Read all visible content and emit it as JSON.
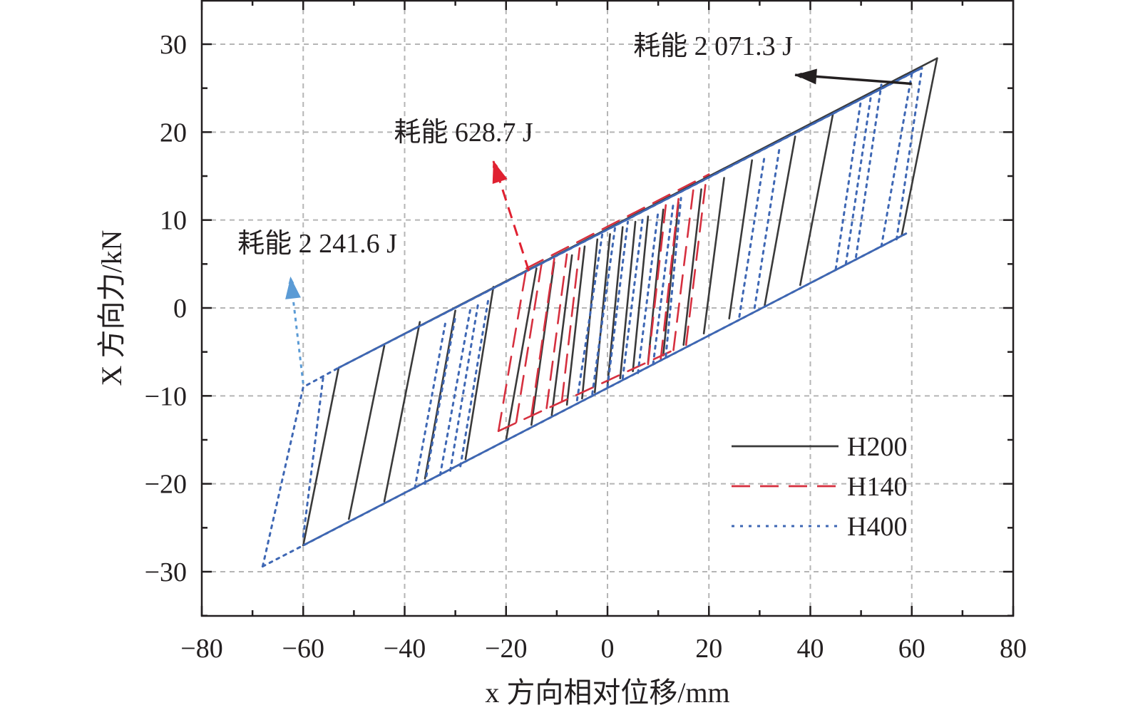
{
  "chart_data": {
    "type": "line",
    "title": "",
    "xlabel": "x 方向相对位移/mm",
    "ylabel": "X 方向力/kN",
    "xlim": [
      -80,
      80
    ],
    "ylim": [
      -35,
      35
    ],
    "xticks": [
      -80,
      -60,
      -40,
      -20,
      0,
      20,
      40,
      60,
      80
    ],
    "yticks": [
      -30,
      -20,
      -10,
      0,
      10,
      20,
      30
    ],
    "x_tick_labels": [
      "−80",
      "−60",
      "−40",
      "−20",
      "0",
      "20",
      "40",
      "60",
      "80"
    ],
    "y_tick_labels": [
      "−30",
      "−20",
      "−10",
      "0",
      "10",
      "20",
      "30"
    ],
    "grid": true,
    "legend_position": "bottom-right",
    "series": [
      {
        "name": "H200",
        "color": "#3a3a3a",
        "style": "solid",
        "envelope": {
          "upper": [
            [
              -53,
              -6.8
            ],
            [
              65,
              28.4
            ]
          ],
          "lower": [
            [
              -60,
              -27
            ],
            [
              58,
              8.2
            ]
          ],
          "tips": [
            [
              65,
              28.4
            ],
            [
              58,
              8.2
            ],
            [
              -53,
              -6.8
            ],
            [
              -60,
              -27
            ]
          ]
        },
        "unloading_paths": [
          [
            [
              -60,
              -27
            ],
            [
              -53,
              -6.8
            ]
          ],
          [
            [
              -51,
              -24
            ],
            [
              -44,
              -4.3
            ]
          ],
          [
            [
              -44,
              -22
            ],
            [
              -37,
              -1.6
            ]
          ],
          [
            [
              -36,
              -19.4
            ],
            [
              -30,
              -0.3
            ]
          ],
          [
            [
              -28,
              -17.2
            ],
            [
              -22.5,
              2.4
            ]
          ],
          [
            [
              -20,
              -15
            ],
            [
              -14,
              4.5
            ]
          ],
          [
            [
              -15,
              -13.3
            ],
            [
              -10.5,
              5.2
            ]
          ],
          [
            [
              -11,
              -12.2
            ],
            [
              -7,
              6
            ]
          ],
          [
            [
              -8,
              -11
            ],
            [
              -4.5,
              7
            ]
          ],
          [
            [
              -5,
              -10.3
            ],
            [
              -2,
              7.8
            ]
          ],
          [
            [
              -2.5,
              -9.6
            ],
            [
              0.5,
              8.4
            ]
          ],
          [
            [
              0,
              -8.8
            ],
            [
              3,
              9.2
            ]
          ],
          [
            [
              2.5,
              -8
            ],
            [
              5.5,
              9.8
            ]
          ],
          [
            [
              5,
              -7.2
            ],
            [
              8,
              10.4
            ]
          ],
          [
            [
              8,
              -6.2
            ],
            [
              11,
              11.2
            ]
          ],
          [
            [
              11,
              -5.4
            ],
            [
              14,
              12
            ]
          ],
          [
            [
              15,
              -4.2
            ],
            [
              18.5,
              13.5
            ]
          ],
          [
            [
              19,
              -2.9
            ],
            [
              23,
              14.8
            ]
          ],
          [
            [
              24,
              -1.2
            ],
            [
              28.5,
              16.8
            ]
          ],
          [
            [
              31,
              0.3
            ],
            [
              37,
              19.5
            ]
          ],
          [
            [
              38,
              2.6
            ],
            [
              44.5,
              22.2
            ]
          ],
          [
            [
              58,
              8.2
            ],
            [
              65,
              28.4
            ]
          ]
        ]
      },
      {
        "name": "H140",
        "color": "#d6303f",
        "style": "dashed",
        "envelope": {
          "upper": [
            [
              -16,
              4.5
            ],
            [
              20,
              15.2
            ]
          ],
          "lower": [
            [
              -21.5,
              -14
            ],
            [
              13,
              -4.8
            ]
          ],
          "tips": [
            [
              20,
              15.2
            ],
            [
              13,
              -4.8
            ],
            [
              -16,
              4.5
            ],
            [
              -21.5,
              -14
            ]
          ]
        },
        "unloading_paths": [
          [
            [
              -21.5,
              -14
            ],
            [
              -16,
              4.5
            ]
          ],
          [
            [
              -18,
              -13
            ],
            [
              -13,
              5
            ]
          ],
          [
            [
              -15,
              -12.2
            ],
            [
              -10.5,
              5.6
            ]
          ],
          [
            [
              -12,
              -11.4
            ],
            [
              -8,
              6.1
            ]
          ],
          [
            [
              -9,
              -10.6
            ],
            [
              -5.5,
              6.8
            ]
          ],
          [
            [
              8,
              -6.4
            ],
            [
              11.5,
              11.7
            ]
          ],
          [
            [
              10.5,
              -5.8
            ],
            [
              14,
              12.4
            ]
          ],
          [
            [
              13,
              -4.8
            ],
            [
              17,
              13.8
            ]
          ],
          [
            [
              15.5,
              -4.2
            ],
            [
              19.5,
              14.9
            ]
          ]
        ]
      },
      {
        "name": "H400",
        "color": "#3e67b4",
        "style": "dotted",
        "envelope": {
          "upper": [
            [
              -53,
              -6.8
            ],
            [
              62,
              27.3
            ]
          ],
          "lower": [
            [
              -68,
              -29.4
            ],
            [
              59,
              8.5
            ]
          ],
          "tips": [
            [
              62,
              27.3
            ],
            [
              59,
              8.5
            ],
            [
              -53,
              -6.8
            ],
            [
              -68,
              -29.4
            ]
          ]
        },
        "unloading_paths": [
          [
            [
              -68,
              -29.4
            ],
            [
              -60,
              -9
            ],
            [
              -53,
              -6.8
            ]
          ],
          [
            [
              -60,
              -26
            ],
            [
              -56,
              -7.6
            ]
          ],
          [
            [
              -38,
              -20.5
            ],
            [
              -32,
              -1.8
            ]
          ],
          [
            [
              -36,
              -20
            ],
            [
              -30,
              -1
            ]
          ],
          [
            [
              -33,
              -19
            ],
            [
              -27,
              0
            ]
          ],
          [
            [
              -31,
              -18.5
            ],
            [
              -25.5,
              0.5
            ]
          ],
          [
            [
              -29,
              -18
            ],
            [
              -23.5,
              1
            ]
          ],
          [
            [
              -6,
              -10.5
            ],
            [
              -1,
              8.5
            ]
          ],
          [
            [
              -3,
              -9.8
            ],
            [
              1.5,
              9.2
            ]
          ],
          [
            [
              0,
              -9
            ],
            [
              4,
              9.8
            ]
          ],
          [
            [
              3,
              -8
            ],
            [
              7,
              10.5
            ]
          ],
          [
            [
              6,
              -7.4
            ],
            [
              10,
              11
            ]
          ],
          [
            [
              9,
              -6.4
            ],
            [
              13,
              12
            ]
          ],
          [
            [
              11.5,
              -5.5
            ],
            [
              14.5,
              12.5
            ]
          ],
          [
            [
              26,
              -1
            ],
            [
              31,
              17.4
            ]
          ],
          [
            [
              29,
              0
            ],
            [
              34,
              18.5
            ]
          ],
          [
            [
              45,
              4.4
            ],
            [
              50,
              23.7
            ]
          ],
          [
            [
              47,
              5
            ],
            [
              52,
              24.3
            ]
          ],
          [
            [
              49,
              5.8
            ],
            [
              54,
              25.4
            ]
          ],
          [
            [
              54,
              7
            ],
            [
              60,
              26.6
            ]
          ],
          [
            [
              57,
              7.8
            ],
            [
              62,
              27.3
            ]
          ]
        ]
      }
    ],
    "annotations": [
      {
        "text": "耗能 2 071.3 J",
        "series": "H200",
        "color": "#231f20",
        "arrow_from": [
          60,
          25.5
        ],
        "arrow_to": [
          37,
          26.5
        ]
      },
      {
        "text": "耗能 628.7 J",
        "series": "H140",
        "color": "#e02131",
        "arrow_from": [
          -15.5,
          4.2
        ],
        "arrow_to": [
          -22.5,
          16.7
        ]
      },
      {
        "text": "耗能 2 241.6 J",
        "series": "H400",
        "color": "#5b9bd5",
        "arrow_from": [
          -60,
          -8.6
        ],
        "arrow_to": [
          -62.5,
          3.5
        ]
      }
    ]
  }
}
